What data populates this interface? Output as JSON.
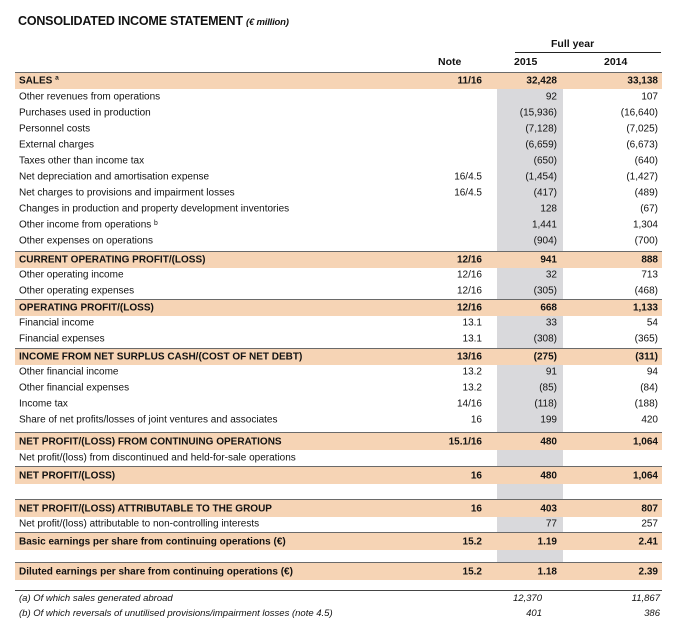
{
  "title": {
    "main": "CONSOLIDATED INCOME STATEMENT",
    "unit": "(€ million)"
  },
  "header": {
    "group": "Full year",
    "note": "Note",
    "y1": "2015",
    "y2": "2014"
  },
  "rows": [
    {
      "label": "SALES ª",
      "note": "11/16",
      "v15": "32,428",
      "v14": "33,138",
      "hl": true
    },
    {
      "label": "Other revenues from operations",
      "note": "",
      "v15": "92",
      "v14": "107"
    },
    {
      "label": "Purchases used in production",
      "note": "",
      "v15": "(15,936)",
      "v14": "(16,640)"
    },
    {
      "label": "Personnel costs",
      "note": "",
      "v15": "(7,128)",
      "v14": "(7,025)"
    },
    {
      "label": "External charges",
      "note": "",
      "v15": "(6,659)",
      "v14": "(6,673)"
    },
    {
      "label": "Taxes other than income tax",
      "note": "",
      "v15": "(650)",
      "v14": "(640)"
    },
    {
      "label": "Net depreciation and amortisation expense",
      "note": "16/4.5",
      "v15": "(1,454)",
      "v14": "(1,427)"
    },
    {
      "label": "Net charges to provisions and impairment losses",
      "note": "16/4.5",
      "v15": "(417)",
      "v14": "(489)"
    },
    {
      "label": "Changes in production and property development inventories",
      "note": "",
      "v15": "128",
      "v14": "(67)"
    },
    {
      "label": "Other income from operations ᵇ",
      "note": "",
      "v15": "1,441",
      "v14": "1,304"
    },
    {
      "label": "Other expenses on operations",
      "note": "",
      "v15": "(904)",
      "v14": "(700)"
    },
    {
      "label": "CURRENT OPERATING PROFIT/(LOSS)",
      "note": "12/16",
      "v15": "941",
      "v14": "888",
      "hl": true
    },
    {
      "label": "Other operating income",
      "note": "12/16",
      "v15": "32",
      "v14": "713"
    },
    {
      "label": "Other operating expenses",
      "note": "12/16",
      "v15": "(305)",
      "v14": "(468)"
    },
    {
      "label": "OPERATING PROFIT/(LOSS)",
      "note": "12/16",
      "v15": "668",
      "v14": "1,133",
      "hl": true
    },
    {
      "label": "Financial income",
      "note": "13.1",
      "v15": "33",
      "v14": "54"
    },
    {
      "label": "Financial expenses",
      "note": "13.1",
      "v15": "(308)",
      "v14": "(365)"
    },
    {
      "label": "INCOME FROM NET SURPLUS CASH/(COST OF NET DEBT)",
      "note": "13/16",
      "v15": "(275)",
      "v14": "(311)",
      "hl": true
    },
    {
      "label": "Other financial income",
      "note": "13.2",
      "v15": "91",
      "v14": "94"
    },
    {
      "label": "Other financial expenses",
      "note": "13.2",
      "v15": "(85)",
      "v14": "(84)"
    },
    {
      "label": "Income tax",
      "note": "14/16",
      "v15": "(118)",
      "v14": "(188)"
    },
    {
      "label": "Share of net profits/losses of joint ventures and associates",
      "note": "16",
      "v15": "199",
      "v14": "420"
    },
    {
      "label": "NET PROFIT/(LOSS) FROM CONTINUING OPERATIONS",
      "note": "15.1/16",
      "v15": "480",
      "v14": "1,064",
      "hl": true
    },
    {
      "label": "Net profit/(loss) from discontinued and held-for-sale operations",
      "note": "",
      "v15": "",
      "v14": ""
    },
    {
      "label": "NET PROFIT/(LOSS)",
      "note": "16",
      "v15": "480",
      "v14": "1,064",
      "hl": true
    },
    {
      "label": "NET PROFIT/(LOSS) ATTRIBUTABLE TO THE GROUP",
      "note": "16",
      "v15": "403",
      "v14": "807",
      "hl": true
    },
    {
      "label": "Net profit/(loss) attributable to non-controlling interests",
      "note": "",
      "v15": "77",
      "v14": "257"
    },
    {
      "label": "Basic earnings per share from continuing operations (€)",
      "note": "15.2",
      "v15": "1.19",
      "v14": "2.41",
      "hl": true
    },
    {
      "label": "Diluted earnings per share from continuing operations (€)",
      "note": "15.2",
      "v15": "1.18",
      "v14": "2.39",
      "hl": true
    }
  ],
  "footnotes": [
    {
      "label": "(a) Of which sales generated abroad",
      "v15": "12,370",
      "v14": "11,867"
    },
    {
      "label": "(b) Of which reversals of unutilised provisions/impairment losses (note 4.5)",
      "v15": "401",
      "v14": "386"
    }
  ]
}
